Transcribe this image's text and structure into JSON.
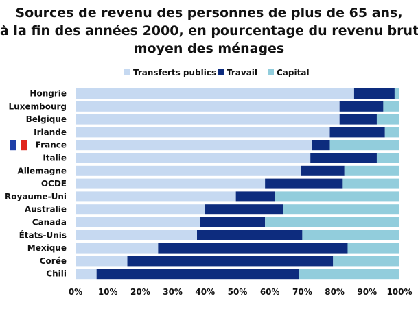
{
  "chart_data": {
    "type": "bar",
    "orientation": "horizontal",
    "stacked": true,
    "title_lines": [
      "Sources de revenu des personnes de plus de 65 ans,",
      "à la fin des années 2000, en pourcentage du revenu brut",
      "moyen des ménages"
    ],
    "legend_position": "top",
    "categories": [
      "Hongrie",
      "Luxembourg",
      "Belgique",
      "Irlande",
      "France",
      "Italie",
      "Allemagne",
      "OCDE",
      "Royaume-Uni",
      "Australie",
      "Canada",
      "États-Unis",
      "Mexique",
      "Corée",
      "Chili"
    ],
    "highlight_category": "France",
    "series": [
      {
        "name": "Transferts publics",
        "color": "#c6d9f1",
        "values": [
          86,
          81.5,
          81.5,
          78.5,
          73,
          72.5,
          69.5,
          58.5,
          49.5,
          40,
          38.5,
          37.5,
          25.5,
          16,
          6.5
        ]
      },
      {
        "name": "Travail",
        "color": "#0d2c7e",
        "values": [
          12.5,
          13.5,
          11.5,
          17,
          5.5,
          20.5,
          13.5,
          24,
          12,
          24,
          20,
          32.5,
          58.5,
          63.5,
          62.5
        ]
      },
      {
        "name": "Capital",
        "color": "#92cddc",
        "values": [
          1.5,
          5,
          7,
          4.5,
          21.5,
          7,
          17,
          17.5,
          38.5,
          36,
          41.5,
          30,
          16,
          20.5,
          31
        ]
      }
    ],
    "xlim": [
      0,
      100
    ],
    "xticks": [
      "0%",
      "10%",
      "20%",
      "30%",
      "40%",
      "50%",
      "60%",
      "70%",
      "80%",
      "90%",
      "100%"
    ],
    "grid": false
  }
}
